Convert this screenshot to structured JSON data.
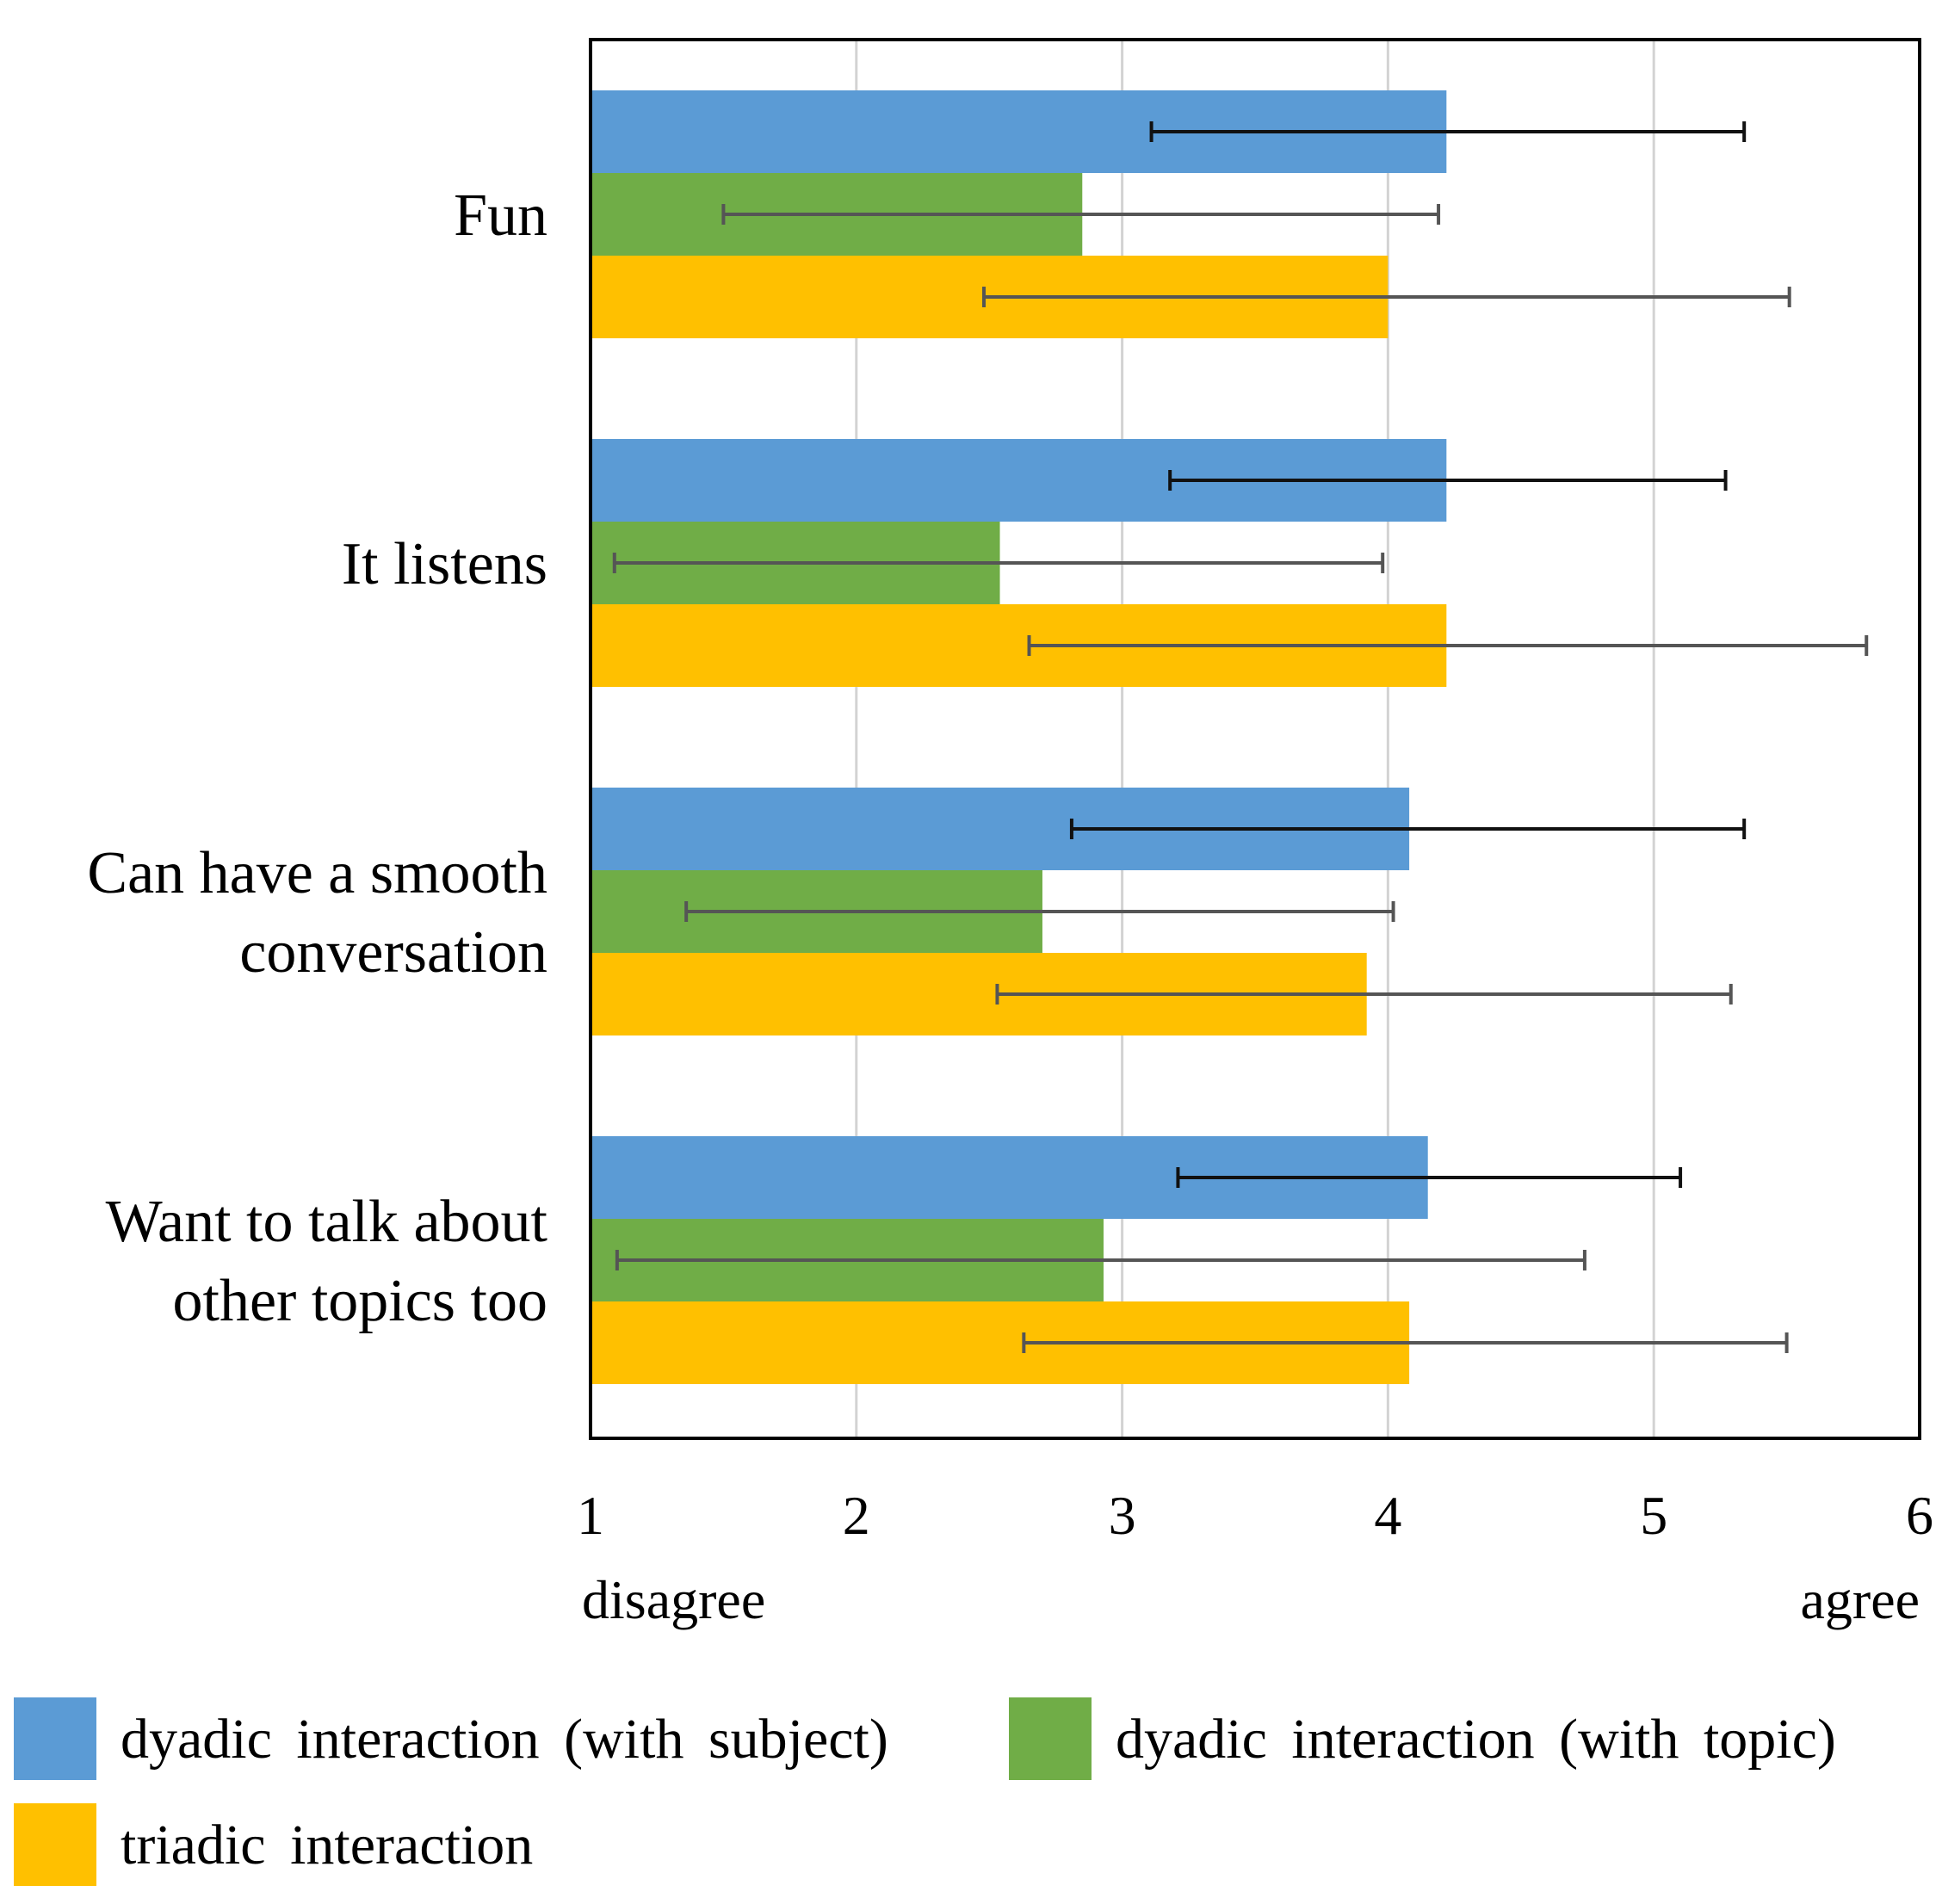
{
  "chart_data": {
    "type": "bar",
    "orientation": "horizontal",
    "title": "",
    "xlabel": "",
    "ylabel": "",
    "xlim": [
      1,
      6
    ],
    "x_ticks": [
      "1",
      "2",
      "3",
      "4",
      "5",
      "6"
    ],
    "x_end_labels": {
      "left": "disagree",
      "right": "agree"
    },
    "grid": "vertical",
    "legend_position": "bottom",
    "categories": [
      {
        "lines": [
          "Fun"
        ]
      },
      {
        "lines": [
          "It listens"
        ]
      },
      {
        "lines": [
          "Can have a smooth",
          "conversation"
        ]
      },
      {
        "lines": [
          "Want to talk about",
          "other topics too"
        ]
      }
    ],
    "series": [
      {
        "name": "dyadic interaction (with subject)",
        "color": "#5b9bd5",
        "errorbar_color": "#111111",
        "values": [
          4.22,
          4.22,
          4.08,
          4.15
        ],
        "error_low": [
          3.11,
          3.18,
          2.81,
          3.21
        ],
        "error_high": [
          5.34,
          5.27,
          5.34,
          5.1
        ]
      },
      {
        "name": "dyadic interaction (with topic)",
        "color": "#70ad47",
        "errorbar_color": "#555555",
        "values": [
          2.85,
          2.54,
          2.7,
          2.93
        ],
        "error_low": [
          1.5,
          1.09,
          1.36,
          1.1
        ],
        "error_high": [
          4.19,
          3.98,
          4.02,
          4.74
        ]
      },
      {
        "name": "triadic interaction",
        "color": "#ffc000",
        "errorbar_color": "#555555",
        "values": [
          4.0,
          4.22,
          3.92,
          4.08
        ],
        "error_low": [
          2.48,
          2.65,
          2.53,
          2.63
        ],
        "error_high": [
          5.51,
          5.8,
          5.29,
          5.5
        ]
      }
    ]
  }
}
